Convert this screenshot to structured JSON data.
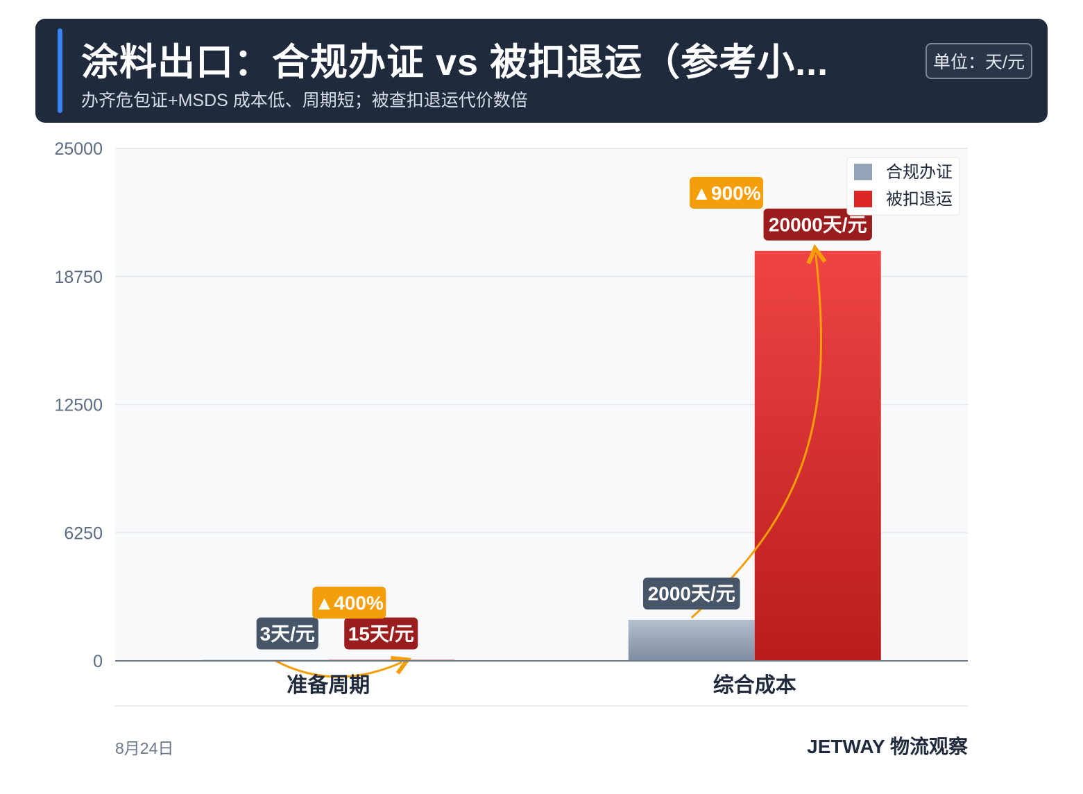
{
  "header": {
    "title": "涂料出口：合规办证 vs 被扣退运（参考小...",
    "subtitle": "办齐危包证+MSDS 成本低、周期短；被查扣退运代价数倍",
    "unit": "单位：天/元"
  },
  "footer": {
    "date": "8月24日",
    "brand": "JETWAY 物流观察"
  },
  "colors": {
    "header_bg": "#1f2a3d",
    "accent": "#3b82f6",
    "compliant": "#94a3b8",
    "detained": "#dc2626",
    "detained_label": "#9b1c1c",
    "compliant_label": "#475569",
    "growth_badge": "#f59e0b"
  },
  "chart_data": {
    "type": "bar",
    "categories": [
      "准备周期",
      "综合成本"
    ],
    "series": [
      {
        "name": "合规办证",
        "values": [
          3,
          2000
        ],
        "labels": [
          "3天/元",
          "2000天/元"
        ]
      },
      {
        "name": "被扣退运",
        "values": [
          15,
          20000
        ],
        "labels": [
          "15天/元",
          "20000天/元"
        ]
      }
    ],
    "growth": [
      "▲400%",
      "▲900%"
    ],
    "ylim": [
      0,
      25000
    ],
    "yticks": [
      "0",
      "6250",
      "12500",
      "18750",
      "25000"
    ],
    "legend_position": "top-right",
    "grid": true
  }
}
